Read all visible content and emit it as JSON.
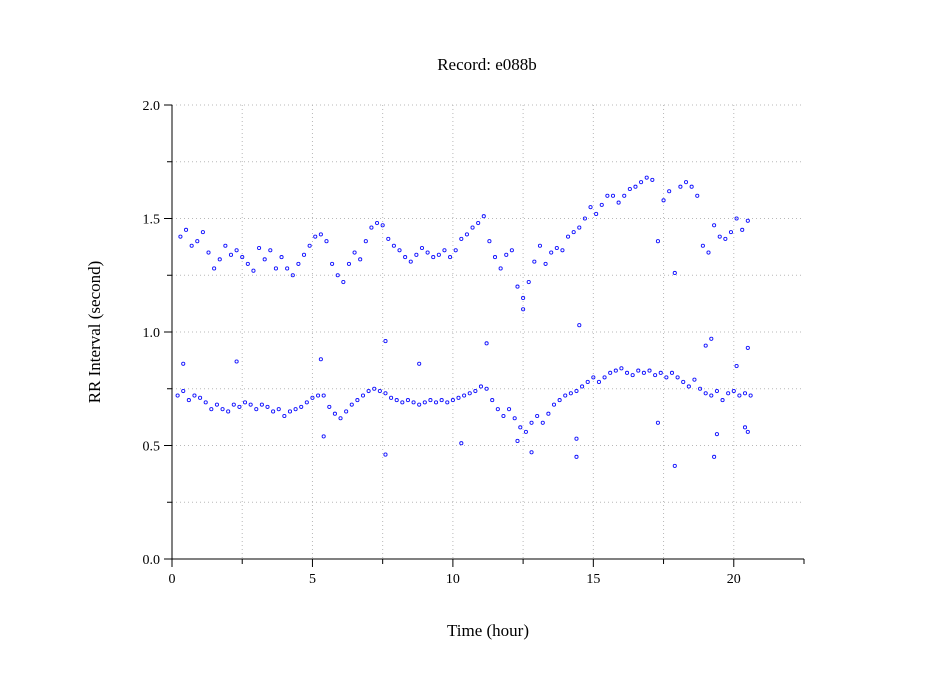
{
  "chart_data": {
    "type": "scatter",
    "title": "Record:  e088b",
    "xlabel": "Time (hour)",
    "ylabel": "RR Interval (second)",
    "xlim": [
      0,
      22.5
    ],
    "ylim": [
      0,
      2
    ],
    "x_ticks": [
      {
        "value": 0,
        "label": "0"
      },
      {
        "value": 5,
        "label": "5"
      },
      {
        "value": 10,
        "label": "10"
      },
      {
        "value": 15,
        "label": "15"
      },
      {
        "value": 20,
        "label": "20"
      }
    ],
    "y_ticks": [
      {
        "value": 0,
        "label": "0.0"
      },
      {
        "value": 0.5,
        "label": "0.5"
      },
      {
        "value": 1,
        "label": "1.0"
      },
      {
        "value": 1.5,
        "label": "1.5"
      },
      {
        "value": 2,
        "label": "2.0"
      }
    ],
    "grid": true,
    "marker_color": "#1010ff",
    "series": [
      {
        "values": [
          [
            0.2,
            0.72
          ],
          [
            0.4,
            0.74
          ],
          [
            0.6,
            0.7
          ],
          [
            0.8,
            0.72
          ],
          [
            1.0,
            0.71
          ],
          [
            1.2,
            0.69
          ],
          [
            1.4,
            0.66
          ],
          [
            1.6,
            0.68
          ],
          [
            1.8,
            0.66
          ],
          [
            2.0,
            0.65
          ],
          [
            2.2,
            0.68
          ],
          [
            2.4,
            0.67
          ],
          [
            2.6,
            0.69
          ],
          [
            2.8,
            0.68
          ],
          [
            3.0,
            0.66
          ],
          [
            3.2,
            0.68
          ],
          [
            3.4,
            0.67
          ],
          [
            3.6,
            0.65
          ],
          [
            3.8,
            0.66
          ],
          [
            4.0,
            0.63
          ],
          [
            4.2,
            0.65
          ],
          [
            4.4,
            0.66
          ],
          [
            4.6,
            0.67
          ],
          [
            4.8,
            0.69
          ],
          [
            5.0,
            0.71
          ],
          [
            5.2,
            0.72
          ],
          [
            5.4,
            0.72
          ],
          [
            5.6,
            0.67
          ],
          [
            5.8,
            0.64
          ],
          [
            6.0,
            0.62
          ],
          [
            6.2,
            0.65
          ],
          [
            6.4,
            0.68
          ],
          [
            6.6,
            0.7
          ],
          [
            6.8,
            0.72
          ],
          [
            7.0,
            0.74
          ],
          [
            7.2,
            0.75
          ],
          [
            7.4,
            0.74
          ],
          [
            7.6,
            0.73
          ],
          [
            7.8,
            0.71
          ],
          [
            8.0,
            0.7
          ],
          [
            8.2,
            0.69
          ],
          [
            8.4,
            0.7
          ],
          [
            8.6,
            0.69
          ],
          [
            8.8,
            0.68
          ],
          [
            9.0,
            0.69
          ],
          [
            9.2,
            0.7
          ],
          [
            9.4,
            0.69
          ],
          [
            9.6,
            0.7
          ],
          [
            9.8,
            0.69
          ],
          [
            10.0,
            0.7
          ],
          [
            10.2,
            0.71
          ],
          [
            10.4,
            0.72
          ],
          [
            10.6,
            0.73
          ],
          [
            10.8,
            0.74
          ],
          [
            11.0,
            0.76
          ],
          [
            11.2,
            0.75
          ],
          [
            11.4,
            0.7
          ],
          [
            11.6,
            0.66
          ],
          [
            11.8,
            0.63
          ],
          [
            12.0,
            0.66
          ],
          [
            12.2,
            0.62
          ],
          [
            12.4,
            0.58
          ],
          [
            12.6,
            0.56
          ],
          [
            12.8,
            0.6
          ],
          [
            13.0,
            0.63
          ],
          [
            13.2,
            0.6
          ],
          [
            13.4,
            0.64
          ],
          [
            13.6,
            0.68
          ],
          [
            13.8,
            0.7
          ],
          [
            14.0,
            0.72
          ],
          [
            14.2,
            0.73
          ],
          [
            14.4,
            0.74
          ],
          [
            14.6,
            0.76
          ],
          [
            14.8,
            0.78
          ],
          [
            15.0,
            0.8
          ],
          [
            15.2,
            0.78
          ],
          [
            15.4,
            0.8
          ],
          [
            15.6,
            0.82
          ],
          [
            15.8,
            0.83
          ],
          [
            16.0,
            0.84
          ],
          [
            16.2,
            0.82
          ],
          [
            16.4,
            0.81
          ],
          [
            16.6,
            0.83
          ],
          [
            16.8,
            0.82
          ],
          [
            17.0,
            0.83
          ],
          [
            17.2,
            0.81
          ],
          [
            17.4,
            0.82
          ],
          [
            17.6,
            0.8
          ],
          [
            17.8,
            0.82
          ],
          [
            18.0,
            0.8
          ],
          [
            18.2,
            0.78
          ],
          [
            18.4,
            0.76
          ],
          [
            18.6,
            0.79
          ],
          [
            18.8,
            0.75
          ],
          [
            19.0,
            0.73
          ],
          [
            19.2,
            0.72
          ],
          [
            19.4,
            0.74
          ],
          [
            19.6,
            0.7
          ],
          [
            19.8,
            0.73
          ],
          [
            20.0,
            0.74
          ],
          [
            20.2,
            0.72
          ],
          [
            20.4,
            0.73
          ],
          [
            20.6,
            0.72
          ],
          [
            0.3,
            1.42
          ],
          [
            0.5,
            1.45
          ],
          [
            0.7,
            1.38
          ],
          [
            0.9,
            1.4
          ],
          [
            1.1,
            1.44
          ],
          [
            1.3,
            1.35
          ],
          [
            1.5,
            1.28
          ],
          [
            1.7,
            1.32
          ],
          [
            1.9,
            1.38
          ],
          [
            2.1,
            1.34
          ],
          [
            2.3,
            1.36
          ],
          [
            2.5,
            1.33
          ],
          [
            2.7,
            1.3
          ],
          [
            2.9,
            1.27
          ],
          [
            3.1,
            1.37
          ],
          [
            3.3,
            1.32
          ],
          [
            3.5,
            1.36
          ],
          [
            3.7,
            1.28
          ],
          [
            3.9,
            1.33
          ],
          [
            4.1,
            1.28
          ],
          [
            4.3,
            1.25
          ],
          [
            4.5,
            1.3
          ],
          [
            4.7,
            1.34
          ],
          [
            4.9,
            1.38
          ],
          [
            5.1,
            1.42
          ],
          [
            5.3,
            1.43
          ],
          [
            5.5,
            1.4
          ],
          [
            5.7,
            1.3
          ],
          [
            5.9,
            1.25
          ],
          [
            6.1,
            1.22
          ],
          [
            6.3,
            1.3
          ],
          [
            6.5,
            1.35
          ],
          [
            6.7,
            1.32
          ],
          [
            6.9,
            1.4
          ],
          [
            7.1,
            1.46
          ],
          [
            7.3,
            1.48
          ],
          [
            7.5,
            1.47
          ],
          [
            7.7,
            1.41
          ],
          [
            7.9,
            1.38
          ],
          [
            8.1,
            1.36
          ],
          [
            8.3,
            1.33
          ],
          [
            8.5,
            1.31
          ],
          [
            8.7,
            1.34
          ],
          [
            8.9,
            1.37
          ],
          [
            9.1,
            1.35
          ],
          [
            9.3,
            1.33
          ],
          [
            9.5,
            1.34
          ],
          [
            9.7,
            1.36
          ],
          [
            9.9,
            1.33
          ],
          [
            10.1,
            1.36
          ],
          [
            10.3,
            1.41
          ],
          [
            10.5,
            1.43
          ],
          [
            10.7,
            1.46
          ],
          [
            10.9,
            1.48
          ],
          [
            11.1,
            1.51
          ],
          [
            11.3,
            1.4
          ],
          [
            11.5,
            1.33
          ],
          [
            11.7,
            1.28
          ],
          [
            11.9,
            1.34
          ],
          [
            12.1,
            1.36
          ],
          [
            12.3,
            1.2
          ],
          [
            12.5,
            1.15
          ],
          [
            12.7,
            1.22
          ],
          [
            12.9,
            1.31
          ],
          [
            13.1,
            1.38
          ],
          [
            13.3,
            1.3
          ],
          [
            13.5,
            1.35
          ],
          [
            13.7,
            1.37
          ],
          [
            13.9,
            1.36
          ],
          [
            14.1,
            1.42
          ],
          [
            14.3,
            1.44
          ],
          [
            14.5,
            1.46
          ],
          [
            14.7,
            1.5
          ],
          [
            14.9,
            1.55
          ],
          [
            15.1,
            1.52
          ],
          [
            15.3,
            1.56
          ],
          [
            15.5,
            1.6
          ],
          [
            15.7,
            1.6
          ],
          [
            15.9,
            1.57
          ],
          [
            16.1,
            1.6
          ],
          [
            16.3,
            1.63
          ],
          [
            16.5,
            1.64
          ],
          [
            16.7,
            1.66
          ],
          [
            16.9,
            1.68
          ],
          [
            17.1,
            1.67
          ],
          [
            17.3,
            1.4
          ],
          [
            17.5,
            1.58
          ],
          [
            17.7,
            1.62
          ],
          [
            17.9,
            1.26
          ],
          [
            18.1,
            1.64
          ],
          [
            18.3,
            1.66
          ],
          [
            18.5,
            1.64
          ],
          [
            18.7,
            1.6
          ],
          [
            18.9,
            1.38
          ],
          [
            19.1,
            1.35
          ],
          [
            19.3,
            1.47
          ],
          [
            19.5,
            1.42
          ],
          [
            19.7,
            1.41
          ],
          [
            19.9,
            1.44
          ],
          [
            20.1,
            1.5
          ],
          [
            20.3,
            1.45
          ],
          [
            20.5,
            1.49
          ],
          [
            0.4,
            0.86
          ],
          [
            2.3,
            0.87
          ],
          [
            5.3,
            0.88
          ],
          [
            5.4,
            0.54
          ],
          [
            7.6,
            0.96
          ],
          [
            7.6,
            0.46
          ],
          [
            8.8,
            0.86
          ],
          [
            11.2,
            0.95
          ],
          [
            12.5,
            1.1
          ],
          [
            12.3,
            0.52
          ],
          [
            12.8,
            0.47
          ],
          [
            14.4,
            0.45
          ],
          [
            14.5,
            1.03
          ],
          [
            14.4,
            0.53
          ],
          [
            17.9,
            0.41
          ],
          [
            19.2,
            0.97
          ],
          [
            19.3,
            0.45
          ],
          [
            19.4,
            0.55
          ],
          [
            20.1,
            0.85
          ],
          [
            20.5,
            0.93
          ],
          [
            20.5,
            0.56
          ],
          [
            20.4,
            0.58
          ],
          [
            19.0,
            0.94
          ],
          [
            17.3,
            0.6
          ],
          [
            10.3,
            0.51
          ]
        ]
      }
    ]
  }
}
